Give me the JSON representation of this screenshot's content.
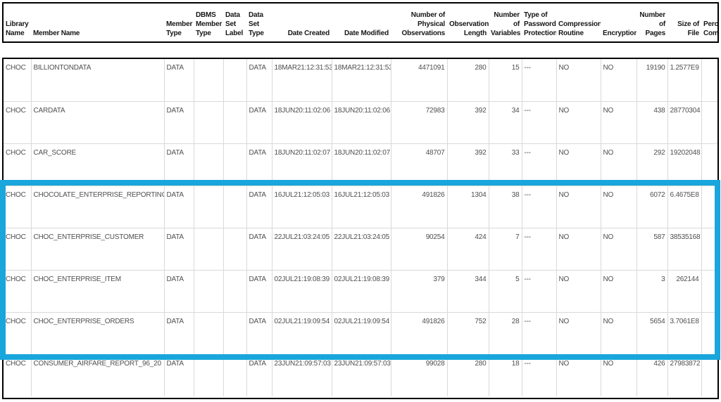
{
  "table": {
    "columns": [
      {
        "id": "library-name",
        "label": "Library Name",
        "align": "left"
      },
      {
        "id": "member-name",
        "label": "Member Name",
        "align": "left"
      },
      {
        "id": "member-type",
        "label": "Member Type",
        "align": "left"
      },
      {
        "id": "dbms-member-type",
        "label": "DBMS Member Type",
        "align": "left"
      },
      {
        "id": "data-set-label",
        "label": "Data Set Label",
        "align": "left"
      },
      {
        "id": "data-set-type",
        "label": "Data Set Type",
        "align": "left"
      },
      {
        "id": "date-created",
        "label": "Date Created",
        "align": "right"
      },
      {
        "id": "date-modified",
        "label": "Date Modified",
        "align": "right"
      },
      {
        "id": "num-physical-obs",
        "label": "Number of Physical Observations",
        "align": "right"
      },
      {
        "id": "observation-length",
        "label": "Observation Length",
        "align": "right"
      },
      {
        "id": "num-variables",
        "label": "Number of Variables",
        "align": "right"
      },
      {
        "id": "password-protection",
        "label": "Type of Password Protection",
        "align": "left"
      },
      {
        "id": "compression-routine",
        "label": "Compression Routine",
        "align": "left"
      },
      {
        "id": "encryption",
        "label": "Encryption",
        "align": "left"
      },
      {
        "id": "num-pages",
        "label": "Number of Pages",
        "align": "right"
      },
      {
        "id": "size-of-file",
        "label": "Size of File",
        "align": "right"
      },
      {
        "id": "percent-compressed",
        "label": "Percent Compressed",
        "align": "left"
      }
    ],
    "rows": [
      [
        "CHOC",
        "BILLIONTONDATA",
        "DATA",
        "",
        "",
        "DATA",
        "18MAR21:12:31:53",
        "18MAR21:12:31:53",
        "4471091",
        "280",
        "15",
        "---",
        "NO",
        "NO",
        "19190",
        "1.2577E9",
        ""
      ],
      [
        "CHOC",
        "CARDATA",
        "DATA",
        "",
        "",
        "DATA",
        "18JUN20:11:02:06",
        "18JUN20:11:02:06",
        "72983",
        "392",
        "34",
        "---",
        "NO",
        "NO",
        "438",
        "28770304",
        ""
      ],
      [
        "CHOC",
        "CAR_SCORE",
        "DATA",
        "",
        "",
        "DATA",
        "18JUN20:11:02:07",
        "18JUN20:11:02:07",
        "48707",
        "392",
        "33",
        "---",
        "NO",
        "NO",
        "292",
        "19202048",
        ""
      ],
      [
        "CHOC",
        "CHOCOLATE_ENTERPRISE_REPORTING",
        "DATA",
        "",
        "",
        "DATA",
        "16JUL21:12:05:03",
        "16JUL21:12:05:03",
        "491826",
        "1304",
        "38",
        "---",
        "NO",
        "NO",
        "6072",
        "6.4675E8",
        ""
      ],
      [
        "CHOC",
        "CHOC_ENTERPRISE_CUSTOMER",
        "DATA",
        "",
        "",
        "DATA",
        "22JUL21:03:24:05",
        "22JUL21:03:24:05",
        "90254",
        "424",
        "7",
        "---",
        "NO",
        "NO",
        "587",
        "38535168",
        ""
      ],
      [
        "CHOC",
        "CHOC_ENTERPRISE_ITEM",
        "DATA",
        "",
        "",
        "DATA",
        "02JUL21:19:08:39",
        "02JUL21:19:08:39",
        "379",
        "344",
        "5",
        "---",
        "NO",
        "NO",
        "3",
        "262144",
        ""
      ],
      [
        "CHOC",
        "CHOC_ENTERPRISE_ORDERS",
        "DATA",
        "",
        "",
        "DATA",
        "02JUL21:19:09:54",
        "02JUL21:19:09:54",
        "491826",
        "752",
        "28",
        "---",
        "NO",
        "NO",
        "5654",
        "3.7061E8",
        ""
      ],
      [
        "CHOC",
        "CONSUMER_AIRFARE_REPORT_96_20",
        "DATA",
        "",
        "",
        "DATA",
        "23JUN21:09:57:03",
        "23JUN21:09:57:03",
        "99028",
        "280",
        "18",
        "---",
        "NO",
        "NO",
        "426",
        "27983872",
        ""
      ]
    ]
  },
  "highlight": {
    "color": "#19a6dc",
    "first_row_index": 3,
    "last_row_index": 6,
    "highlighted_member_names": [
      "CHOCOLATE_ENTERPRISE_REPORTING",
      "CHOC_ENTERPRISE_CUSTOMER",
      "CHOC_ENTERPRISE_ITEM",
      "CHOC_ENTERPRISE_ORDERS"
    ]
  },
  "colors": {
    "table_border": "#000000",
    "grid_line": "#d9d9d9",
    "header_text": "#161616",
    "body_text": "#4f4f4f"
  }
}
